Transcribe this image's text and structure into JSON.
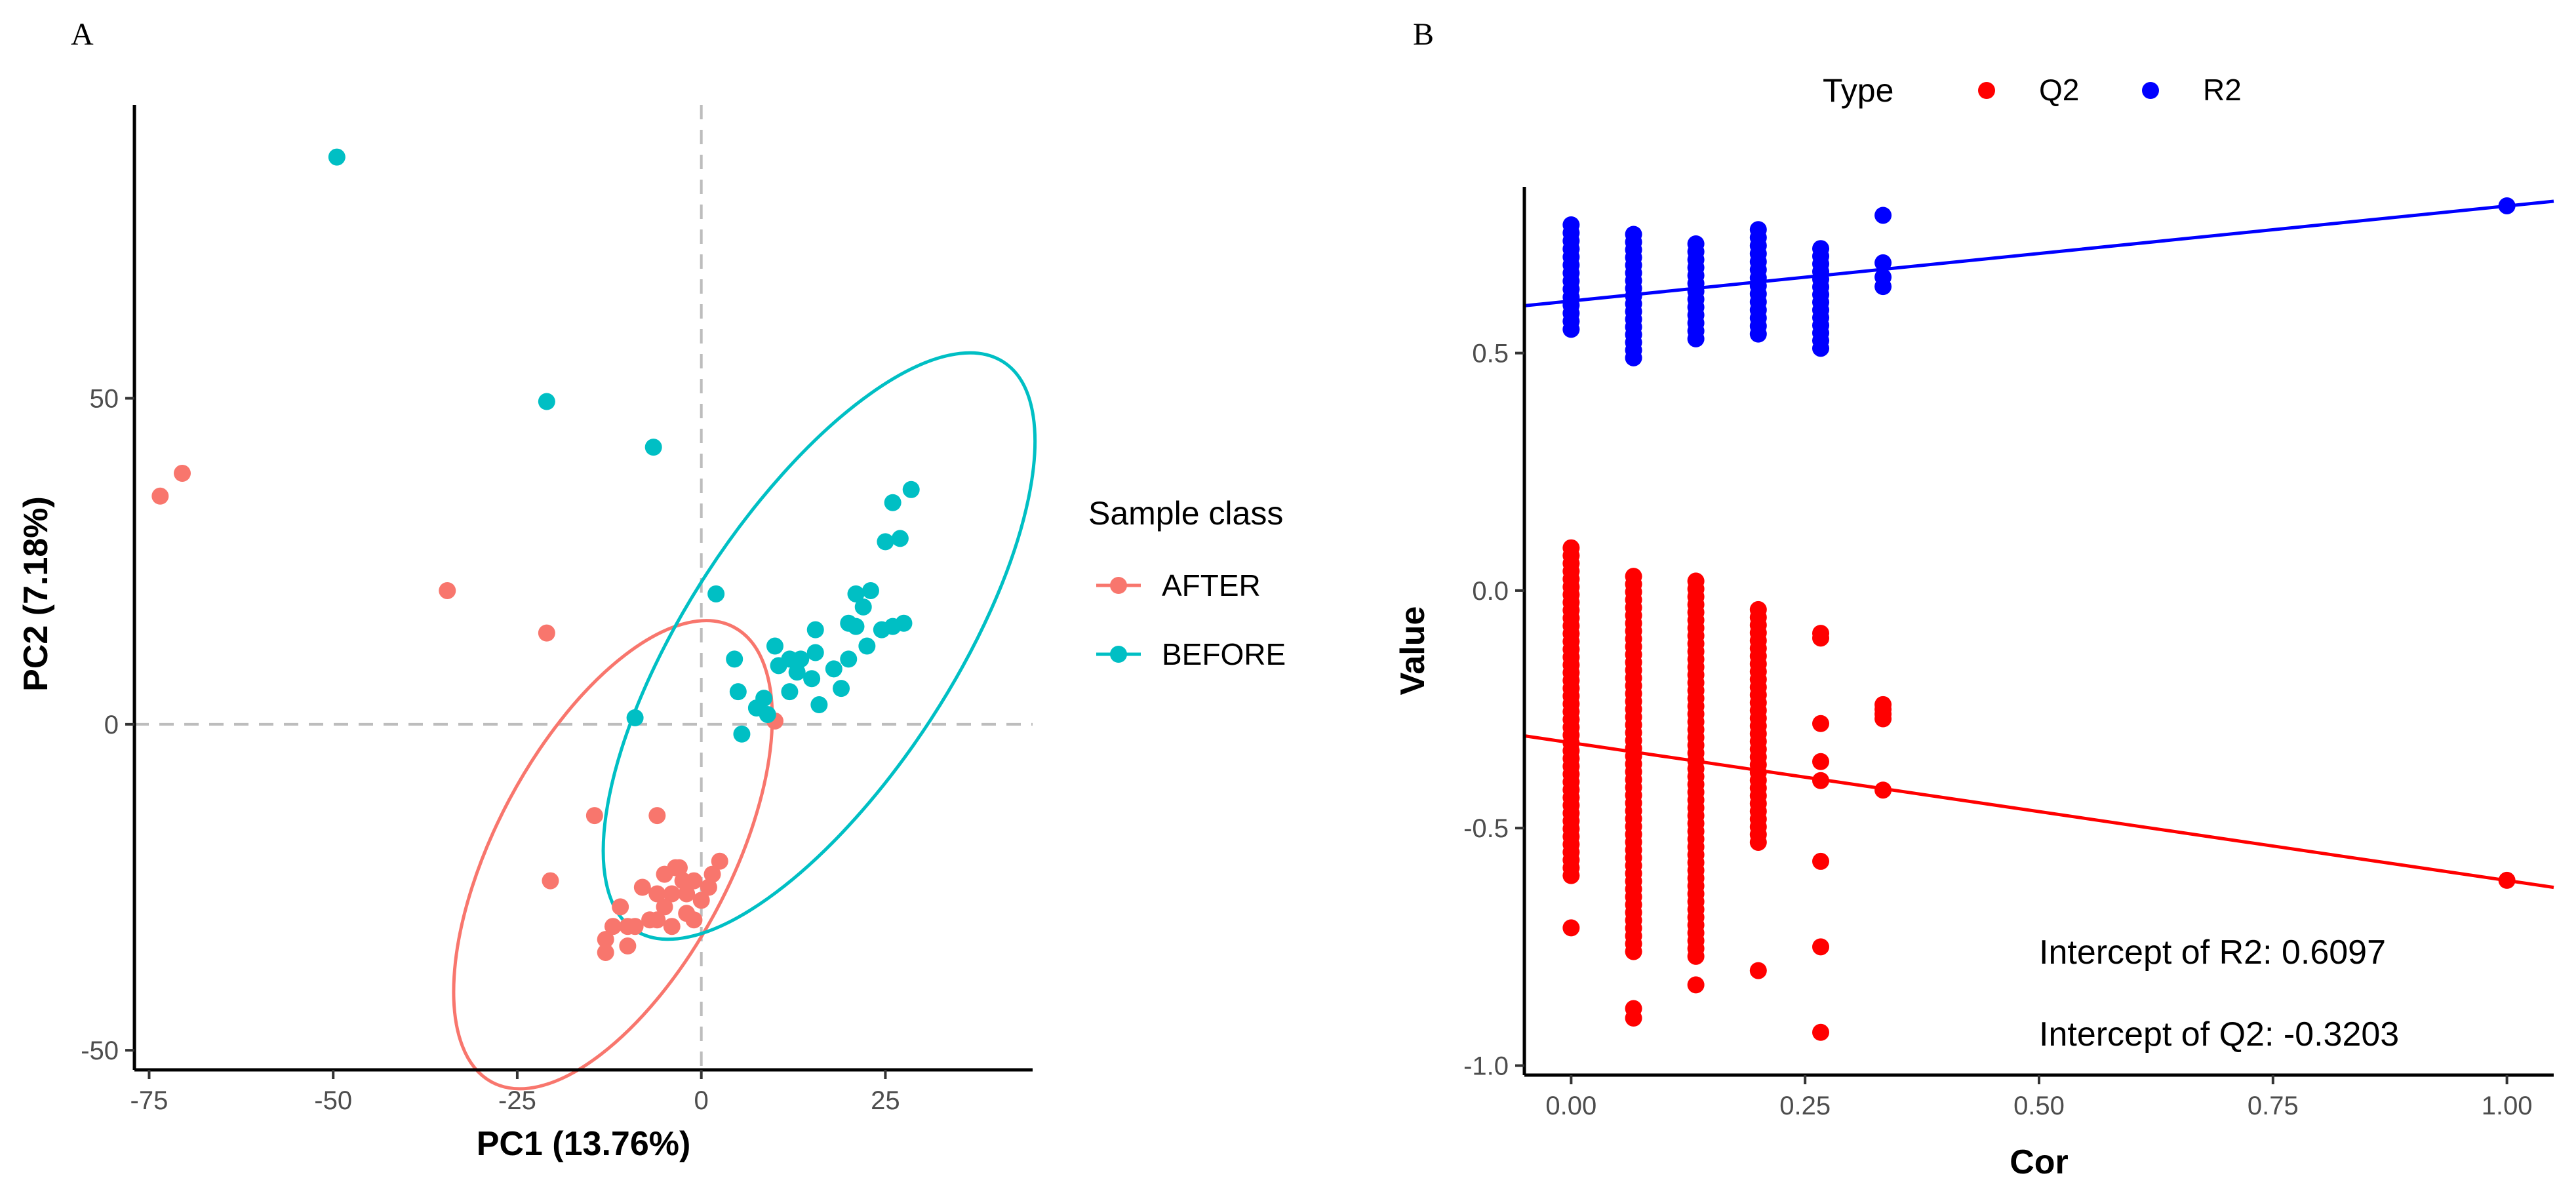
{
  "chart_data": [
    {
      "panel_label": "A",
      "type": "scatter",
      "xlabel": "PC1 (13.76%)",
      "ylabel": "PC2 (7.18%)",
      "xlim": [
        -77,
        45
      ],
      "ylim": [
        -53,
        95
      ],
      "xticks": [
        -75,
        -50,
        -25,
        0,
        25
      ],
      "xtick_labels": [
        "-75",
        "-50",
        "-25",
        "0",
        "25"
      ],
      "yticks": [
        -50,
        0,
        50
      ],
      "ytick_labels": [
        "-50",
        "0",
        "50"
      ],
      "reference_lines": {
        "x": 0,
        "y": 0
      },
      "legend": {
        "title": "Sample class",
        "position": "right",
        "entries": [
          {
            "label": "AFTER",
            "color": "#F8766D"
          },
          {
            "label": "BEFORE",
            "color": "#00BFC4"
          }
        ]
      },
      "series": [
        {
          "name": "AFTER",
          "color": "#F8766D",
          "points": [
            [
              -73.5,
              35
            ],
            [
              -70.5,
              38.5
            ],
            [
              -34.5,
              20.5
            ],
            [
              -21,
              14
            ],
            [
              -14.5,
              -14
            ],
            [
              -20.5,
              -24
            ],
            [
              -3,
              -22
            ],
            [
              -5,
              -23
            ],
            [
              -1,
              -24
            ],
            [
              -4,
              -26
            ],
            [
              -6,
              -26
            ],
            [
              -8,
              -25
            ],
            [
              -5,
              -28
            ],
            [
              -6,
              -30
            ],
            [
              -4,
              -31
            ],
            [
              -2,
              -29
            ],
            [
              -10,
              -31
            ],
            [
              -12,
              -31
            ],
            [
              -13,
              -33
            ],
            [
              -10,
              -34
            ],
            [
              -13,
              -35
            ],
            [
              -11,
              -28
            ],
            [
              -7,
              -30
            ],
            [
              -2,
              -26
            ],
            [
              1,
              -25
            ],
            [
              0,
              -27
            ],
            [
              1.5,
              -23
            ],
            [
              2.5,
              -21
            ],
            [
              -2.5,
              -24
            ],
            [
              -6,
              -14
            ],
            [
              -9,
              -31
            ],
            [
              -3.5,
              -22
            ],
            [
              -1,
              -30
            ],
            [
              10,
              0.5
            ]
          ],
          "ellipse": {
            "cx": -12,
            "cy": -20,
            "rx": 35,
            "ry": 18,
            "angle_deg": 62
          }
        },
        {
          "name": "BEFORE",
          "color": "#00BFC4",
          "points": [
            [
              -49.5,
              87
            ],
            [
              -21,
              49.5
            ],
            [
              -6.5,
              42.5
            ],
            [
              2,
              20
            ],
            [
              -9,
              1
            ],
            [
              4.5,
              10
            ],
            [
              5,
              5
            ],
            [
              5.5,
              -1.5
            ],
            [
              7.5,
              2.5
            ],
            [
              9,
              1.5
            ],
            [
              10,
              12
            ],
            [
              10.5,
              9
            ],
            [
              12,
              10
            ],
            [
              13.5,
              10
            ],
            [
              15.5,
              11
            ],
            [
              15.5,
              14.5
            ],
            [
              15,
              7
            ],
            [
              16,
              3
            ],
            [
              18,
              8.5
            ],
            [
              20,
              10
            ],
            [
              20,
              15.5
            ],
            [
              21,
              15
            ],
            [
              21,
              20
            ],
            [
              22,
              18
            ],
            [
              23,
              20.5
            ],
            [
              25,
              28
            ],
            [
              26,
              34
            ],
            [
              27,
              28.5
            ],
            [
              27.5,
              15.5
            ],
            [
              28.5,
              36
            ],
            [
              26,
              15
            ],
            [
              22.5,
              12
            ],
            [
              19,
              5.5
            ],
            [
              12,
              5
            ],
            [
              8.5,
              4
            ],
            [
              24.5,
              14.5
            ],
            [
              13,
              8
            ]
          ],
          "ellipse": {
            "cx": 16,
            "cy": 12,
            "rx": 46,
            "ry": 20.5,
            "angle_deg": 57
          }
        }
      ]
    },
    {
      "panel_label": "B",
      "type": "scatter",
      "xlabel": "Cor",
      "ylabel": "Value",
      "xlim": [
        -0.05,
        1.05
      ],
      "ylim": [
        -1.02,
        0.85
      ],
      "xticks": [
        0,
        0.25,
        0.5,
        0.75,
        1.0
      ],
      "xtick_labels": [
        "0.00",
        "0.25",
        "0.50",
        "0.75",
        "1.00"
      ],
      "yticks": [
        -1.0,
        -0.5,
        0.0,
        0.5
      ],
      "ytick_labels": [
        "-1.0",
        "-0.5",
        "0.0",
        "0.5"
      ],
      "legend": {
        "title": "Type",
        "position": "top",
        "entries": [
          {
            "label": "Q2",
            "color": "#FF0000"
          },
          {
            "label": "R2",
            "color": "#0000FF"
          }
        ]
      },
      "annotations": [
        "Intercept of R2: 0.6097",
        "Intercept of Q2: -0.3203"
      ],
      "series": [
        {
          "name": "R2",
          "color": "#0000FF",
          "columns": [
            {
              "x": 0.0,
              "min": 0.55,
              "max": 0.77
            },
            {
              "x": 0.0667,
              "min": 0.49,
              "max": 0.75
            },
            {
              "x": 0.1333,
              "min": 0.53,
              "max": 0.73
            },
            {
              "x": 0.2,
              "min": 0.54,
              "max": 0.76
            },
            {
              "x": 0.2667,
              "min": 0.51,
              "max": 0.72
            },
            {
              "x": 0.3333,
              "values": [
                0.64,
                0.66,
                0.69,
                0.79
              ]
            },
            {
              "x": 1.0,
              "values": [
                0.81
              ]
            }
          ],
          "fit": {
            "intercept": 0.6097,
            "slope": 0.2
          }
        },
        {
          "name": "Q2",
          "color": "#FF0000",
          "columns": [
            {
              "x": 0.0,
              "min": -0.6,
              "max": 0.09,
              "extra": [
                -0.71
              ]
            },
            {
              "x": 0.0667,
              "min": -0.76,
              "max": 0.03,
              "extra": [
                -0.88,
                -0.9
              ]
            },
            {
              "x": 0.1333,
              "min": -0.77,
              "max": 0.02,
              "extra": [
                -0.83
              ]
            },
            {
              "x": 0.2,
              "min": -0.53,
              "max": -0.04,
              "extra": [
                -0.8
              ]
            },
            {
              "x": 0.2667,
              "values": [
                -0.09,
                -0.1,
                -0.28,
                -0.36,
                -0.4,
                -0.57,
                -0.75,
                -0.93
              ]
            },
            {
              "x": 0.3333,
              "values": [
                -0.24,
                -0.25,
                -0.26,
                -0.27,
                -0.42
              ]
            },
            {
              "x": 1.0,
              "values": [
                -0.61
              ]
            }
          ],
          "fit": {
            "intercept": -0.3203,
            "slope": -0.29
          }
        }
      ]
    }
  ]
}
